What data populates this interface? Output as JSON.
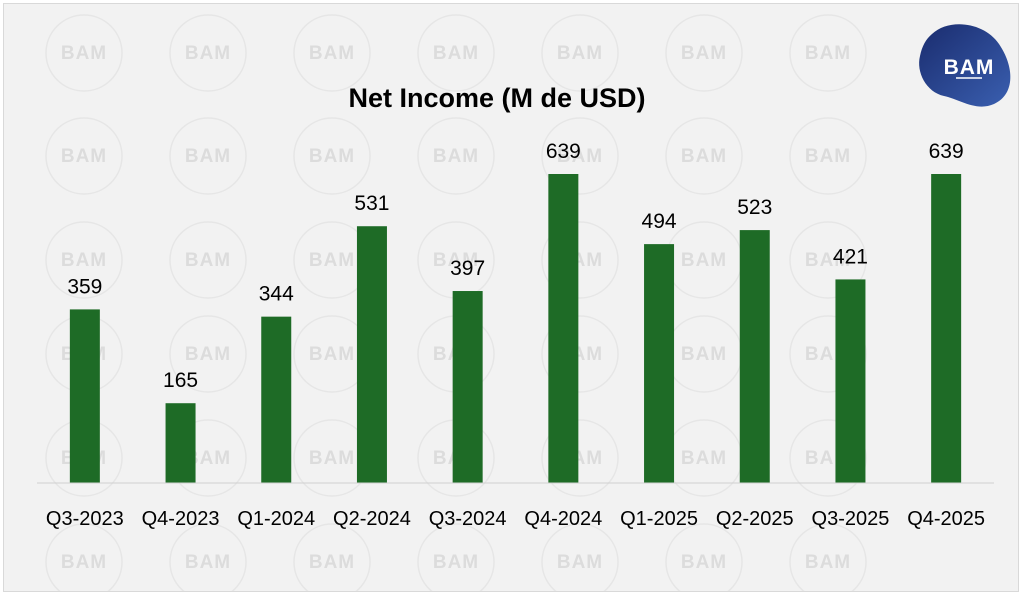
{
  "brand": {
    "logo_text": "BAM",
    "watermark_text": "BAM",
    "colors": {
      "bar": "#1e6b26",
      "logo_dark": "#1a2c6e",
      "logo_light": "#3a5fb0"
    }
  },
  "chart_data": {
    "type": "bar",
    "title": "Net Income (M de USD)",
    "categories": [
      "Q3-2023",
      "Q4-2023",
      "Q1-2024",
      "Q2-2024",
      "Q3-2024",
      "Q4-2024",
      "Q1-2025",
      "Q2-2025",
      "Q3-2025",
      "Q4-2025"
    ],
    "values": [
      359,
      165,
      344,
      531,
      397,
      639,
      494,
      523,
      421,
      639
    ],
    "ylim": [
      0,
      639
    ],
    "grid": false,
    "legend": "none",
    "data_labels": true
  }
}
